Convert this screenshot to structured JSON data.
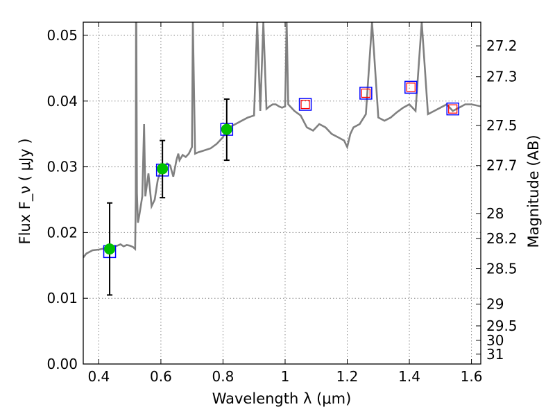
{
  "chart_data": {
    "type": "line",
    "xlabel": "Wavelength  λ (μm)",
    "ylabel": "Flux  F_ν  ( μJy )",
    "y2label": "Magnitude (AB)",
    "xlim": [
      0.35,
      1.63
    ],
    "ylim": [
      0.0,
      0.052
    ],
    "x_ticks": [
      0.4,
      0.6,
      0.8,
      1.0,
      1.2,
      1.4,
      1.6
    ],
    "x_tick_labels": [
      "0.4",
      "0.6",
      "0.8",
      "1",
      "1.2",
      "1.4",
      "1.6"
    ],
    "y_ticks": [
      0.0,
      0.01,
      0.02,
      0.03,
      0.04,
      0.05
    ],
    "y_tick_labels": [
      "0.00",
      "0.01",
      "0.02",
      "0.03",
      "0.04",
      "0.05"
    ],
    "y2_ticks": [
      {
        "label": "27.2",
        "flux": 0.0484
      },
      {
        "label": "27.3",
        "flux": 0.0437
      },
      {
        "label": "27.5",
        "flux": 0.0363
      },
      {
        "label": "27.7",
        "flux": 0.0302
      },
      {
        "label": "28",
        "flux": 0.0229
      },
      {
        "label": "28.2",
        "flux": 0.0191
      },
      {
        "label": "28.5",
        "flux": 0.0145
      },
      {
        "label": "29",
        "flux": 0.0091
      },
      {
        "label": "29.5",
        "flux": 0.0058
      },
      {
        "label": "30",
        "flux": 0.0036
      },
      {
        "label": "31",
        "flux": 0.0015
      }
    ],
    "grid": true,
    "colors": {
      "model_line": "#808080",
      "model_square": "#0000ff",
      "detection": "#00c000",
      "upper_limit": "#ff0000",
      "error_bar": "#000000",
      "grid": "#888888"
    },
    "series": [
      {
        "kind": "line",
        "x": [
          0.35,
          0.36,
          0.38,
          0.4,
          0.42,
          0.44,
          0.46,
          0.47,
          0.48,
          0.49,
          0.5,
          0.51,
          0.517,
          0.519,
          0.52,
          0.521,
          0.523,
          0.526,
          0.53,
          0.54,
          0.546,
          0.55,
          0.56,
          0.57,
          0.58,
          0.59,
          0.6,
          0.61,
          0.62,
          0.63,
          0.64,
          0.65,
          0.656,
          0.66,
          0.67,
          0.68,
          0.69,
          0.7,
          0.703,
          0.71,
          0.72,
          0.74,
          0.76,
          0.78,
          0.8,
          0.81,
          0.82,
          0.84,
          0.86,
          0.88,
          0.9,
          0.91,
          0.92,
          0.93,
          0.94,
          0.95,
          0.96,
          0.97,
          0.98,
          0.99,
          1.0,
          1.005,
          1.01,
          1.03,
          1.05,
          1.07,
          1.09,
          1.11,
          1.13,
          1.15,
          1.17,
          1.19,
          1.2,
          1.21,
          1.22,
          1.24,
          1.26,
          1.28,
          1.3,
          1.32,
          1.34,
          1.36,
          1.38,
          1.4,
          1.42,
          1.44,
          1.46,
          1.48,
          1.5,
          1.52,
          1.54,
          1.56,
          1.58,
          1.6,
          1.63
        ],
        "y": [
          0.0162,
          0.0168,
          0.0173,
          0.0174,
          0.0176,
          0.0178,
          0.018,
          0.0182,
          0.0179,
          0.0181,
          0.018,
          0.0178,
          0.0175,
          0.025,
          0.052,
          0.052,
          0.026,
          0.0215,
          0.0225,
          0.0255,
          0.0365,
          0.0255,
          0.029,
          0.024,
          0.025,
          0.028,
          0.0295,
          0.03,
          0.0305,
          0.0302,
          0.0285,
          0.031,
          0.032,
          0.031,
          0.0318,
          0.0315,
          0.032,
          0.033,
          0.052,
          0.032,
          0.0322,
          0.0325,
          0.0328,
          0.0335,
          0.0345,
          0.0355,
          0.036,
          0.0365,
          0.037,
          0.0375,
          0.0378,
          0.052,
          0.0385,
          0.052,
          0.0388,
          0.0392,
          0.0395,
          0.0395,
          0.0392,
          0.039,
          0.0392,
          0.052,
          0.0395,
          0.0385,
          0.0378,
          0.036,
          0.0355,
          0.0365,
          0.036,
          0.035,
          0.0345,
          0.034,
          0.033,
          0.035,
          0.036,
          0.0365,
          0.038,
          0.052,
          0.0375,
          0.037,
          0.0375,
          0.0383,
          0.039,
          0.0395,
          0.0385,
          0.052,
          0.038,
          0.0385,
          0.039,
          0.0395,
          0.0385,
          0.039,
          0.0395,
          0.0395,
          0.0392
        ]
      },
      {
        "kind": "model_squares",
        "points": [
          {
            "x": 0.435,
            "y": 0.0171
          },
          {
            "x": 0.605,
            "y": 0.0295
          },
          {
            "x": 0.812,
            "y": 0.0357
          },
          {
            "x": 1.065,
            "y": 0.0395
          },
          {
            "x": 1.26,
            "y": 0.0412
          },
          {
            "x": 1.405,
            "y": 0.0421
          },
          {
            "x": 1.54,
            "y": 0.0388
          }
        ]
      },
      {
        "kind": "detections",
        "points": [
          {
            "x": 0.435,
            "y": 0.0175,
            "err_low": 0.0105,
            "err_high": 0.0245
          },
          {
            "x": 0.605,
            "y": 0.0297,
            "err_low": 0.0253,
            "err_high": 0.034
          },
          {
            "x": 0.812,
            "y": 0.0357,
            "err_low": 0.031,
            "err_high": 0.0403
          }
        ]
      },
      {
        "kind": "upper_limits",
        "points": [
          {
            "x": 1.065,
            "y": 0.0395
          },
          {
            "x": 1.26,
            "y": 0.0412
          },
          {
            "x": 1.405,
            "y": 0.0421
          },
          {
            "x": 1.54,
            "y": 0.0388
          }
        ]
      }
    ]
  }
}
